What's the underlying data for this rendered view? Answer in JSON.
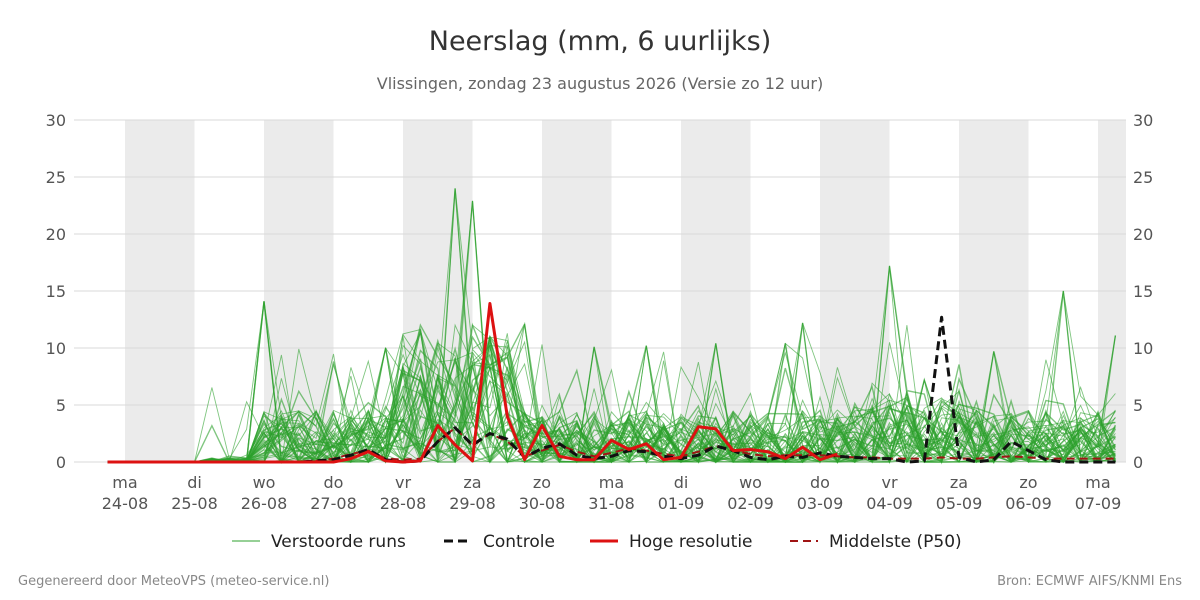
{
  "chart_data": {
    "type": "line",
    "title": "Neerslag (mm, 6 uurlijks)",
    "subtitle": "Vlissingen, zondag 23 augustus 2026 (Versie zo 12 uur)",
    "ylim": [
      0,
      30
    ],
    "yticks": [
      0,
      5,
      10,
      15,
      20,
      25,
      30
    ],
    "grid": true,
    "legend_placement": "bottom",
    "x_start": "2026-08-23 18:00",
    "x_step_hours": 6,
    "xlim": [
      "2026-08-24 00:00",
      "2026-09-07 12:00"
    ],
    "days": [
      {
        "date": "2026-08-24",
        "weekday": "ma",
        "label": "24-08",
        "shaded": true
      },
      {
        "date": "2026-08-25",
        "weekday": "di",
        "label": "25-08",
        "shaded": false
      },
      {
        "date": "2026-08-26",
        "weekday": "wo",
        "label": "26-08",
        "shaded": true
      },
      {
        "date": "2026-08-27",
        "weekday": "do",
        "label": "27-08",
        "shaded": false
      },
      {
        "date": "2026-08-28",
        "weekday": "vr",
        "label": "28-08",
        "shaded": true
      },
      {
        "date": "2026-08-29",
        "weekday": "za",
        "label": "29-08",
        "shaded": false
      },
      {
        "date": "2026-08-30",
        "weekday": "zo",
        "label": "30-08",
        "shaded": true
      },
      {
        "date": "2026-08-31",
        "weekday": "ma",
        "label": "31-08",
        "shaded": false
      },
      {
        "date": "2026-09-01",
        "weekday": "di",
        "label": "01-09",
        "shaded": true
      },
      {
        "date": "2026-09-02",
        "weekday": "wo",
        "label": "02-09",
        "shaded": false
      },
      {
        "date": "2026-09-03",
        "weekday": "do",
        "label": "03-09",
        "shaded": true
      },
      {
        "date": "2026-09-04",
        "weekday": "vr",
        "label": "04-09",
        "shaded": false
      },
      {
        "date": "2026-09-05",
        "weekday": "za",
        "label": "05-09",
        "shaded": true
      },
      {
        "date": "2026-09-06",
        "weekday": "zo",
        "label": "06-09",
        "shaded": false
      },
      {
        "date": "2026-09-07",
        "weekday": "ma",
        "label": "07-09",
        "shaded": true
      }
    ],
    "series": [
      {
        "name": "Controle",
        "color": "#111111",
        "style": "dashed",
        "width": 3,
        "values": [
          0,
          0,
          0,
          0,
          0,
          0,
          0,
          0,
          0,
          0,
          0,
          0,
          0.1,
          0.2,
          0.6,
          1.1,
          0.2,
          0,
          0.1,
          1.8,
          3.0,
          1.5,
          2.5,
          2.0,
          0.4,
          1.2,
          1.6,
          0.6,
          0.3,
          0.5,
          1.0,
          0.9,
          0.5,
          0.3,
          0.6,
          1.4,
          1.0,
          0.4,
          0.2,
          0.5,
          0.4,
          0.8,
          0.5,
          0.4,
          0.3,
          0.3,
          0,
          0.1,
          12.7,
          0.4,
          0,
          0.2,
          1.8,
          1.0,
          0.2,
          0,
          0,
          0,
          0,
          0,
          0,
          0,
          0,
          0,
          0,
          0,
          0,
          0,
          0,
          0.2,
          0.2
        ]
      },
      {
        "name": "Hoge resolutie",
        "color": "#dd1111",
        "style": "solid",
        "width": 3,
        "values": [
          0,
          0,
          0,
          0,
          0,
          0,
          0,
          0,
          0,
          0,
          0,
          0,
          0,
          0,
          0.3,
          0.9,
          0.1,
          0,
          0.1,
          3.2,
          1.5,
          0.1,
          13.9,
          4.0,
          0.2,
          3.2,
          0.5,
          0.2,
          0.2,
          1.9,
          1.1,
          1.6,
          0.2,
          0.4,
          3.1,
          2.9,
          1.0,
          1.1,
          0.9,
          0.3,
          1.3,
          0.2,
          0.7
        ]
      },
      {
        "name": "Middelste (P50)",
        "color": "#a01414",
        "style": "dashed",
        "width": 2,
        "values": [
          0,
          0,
          0,
          0,
          0,
          0,
          0,
          0,
          0,
          0,
          0,
          0,
          0.1,
          0.3,
          0.7,
          1.0,
          0.3,
          0.2,
          0.3,
          1.8,
          3.0,
          1.4,
          2.5,
          1.8,
          0.5,
          1.0,
          1.5,
          0.9,
          0.5,
          0.8,
          1.2,
          1.0,
          0.7,
          0.5,
          0.9,
          1.4,
          1.0,
          0.7,
          0.5,
          0.6,
          0.6,
          0.6,
          0.5,
          0.4,
          0.4,
          0.3,
          0.3,
          0.3,
          0.4,
          0.3,
          0.3,
          0.4,
          0.5,
          0.4,
          0.3,
          0.3,
          0.3,
          0.3,
          0.3,
          0.3,
          0.3,
          0.3,
          0.3,
          0.3,
          0.3,
          0.3,
          0.3,
          0.3,
          0.3,
          0.4,
          0.4
        ]
      },
      {
        "name": "Verstoorde runs",
        "color": "#2ca02c",
        "style": "solid",
        "width": 1,
        "members": 50,
        "seed": 7,
        "peaks": [
          {
            "x": "2026-08-26 00:00",
            "value": 14.1
          },
          {
            "x": "2026-08-27 18:00",
            "value": 10.0
          },
          {
            "x": "2026-08-28 18:00",
            "value": 24.0
          },
          {
            "x": "2026-08-29 00:00",
            "value": 22.9
          },
          {
            "x": "2026-08-29 06:00",
            "value": 11.0
          },
          {
            "x": "2026-08-29 18:00",
            "value": 12.1
          },
          {
            "x": "2026-08-30 18:00",
            "value": 10.1
          },
          {
            "x": "2026-08-31 12:00",
            "value": 10.2
          },
          {
            "x": "2026-09-01 12:00",
            "value": 10.4
          },
          {
            "x": "2026-09-02 12:00",
            "value": 10.4
          },
          {
            "x": "2026-09-02 18:00",
            "value": 12.2
          },
          {
            "x": "2026-09-04 00:00",
            "value": 17.2
          },
          {
            "x": "2026-09-04 12:00",
            "value": 7.2
          },
          {
            "x": "2026-09-05 12:00",
            "value": 9.7
          },
          {
            "x": "2026-09-06 12:00",
            "value": 15.0
          },
          {
            "x": "2026-09-07 06:00",
            "value": 11.1
          }
        ]
      }
    ]
  },
  "legend": {
    "perturbed": "Verstoorde runs",
    "control": "Controle",
    "highres": "Hoge resolutie",
    "median": "Middelste (P50)"
  },
  "footer": {
    "left": "Gegenereerd door MeteoVPS (meteo-service.nl)",
    "right": "Bron: ECMWF AIFS/KNMI Ens"
  },
  "colors": {
    "shade": "#ebebeb",
    "grid": "#d8d8d8",
    "ensemble": "#2ca02c"
  }
}
